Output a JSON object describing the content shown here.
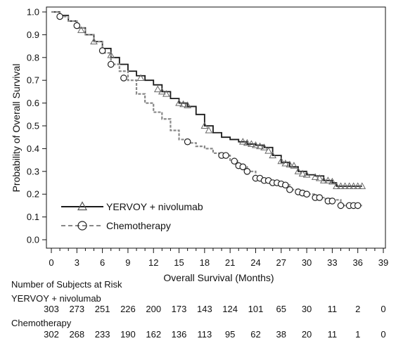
{
  "chart_data": {
    "type": "line",
    "xlabel": "Overall Survival (Months)",
    "ylabel": "Probability of Overall Survival",
    "xlim": [
      0,
      39
    ],
    "ylim": [
      0,
      1.0
    ],
    "x_ticks": [
      0,
      3,
      6,
      9,
      12,
      15,
      18,
      21,
      24,
      27,
      30,
      33,
      36,
      39
    ],
    "y_ticks": [
      0.0,
      0.1,
      0.2,
      0.3,
      0.4,
      0.5,
      0.6,
      0.7,
      0.8,
      0.9,
      1.0
    ],
    "legend_position": "bottom-left",
    "series": [
      {
        "name": "YERVOY + nivolumab",
        "line_style": "solid",
        "marker": "triangle",
        "color": "#1a1a1a",
        "points": [
          [
            0,
            1.0
          ],
          [
            1,
            0.985
          ],
          [
            2,
            0.96
          ],
          [
            3,
            0.93
          ],
          [
            4,
            0.9
          ],
          [
            5,
            0.87
          ],
          [
            6,
            0.84
          ],
          [
            7,
            0.8
          ],
          [
            8,
            0.77
          ],
          [
            9,
            0.74
          ],
          [
            10,
            0.72
          ],
          [
            11,
            0.7
          ],
          [
            12,
            0.68
          ],
          [
            13,
            0.65
          ],
          [
            14,
            0.62
          ],
          [
            15,
            0.6
          ],
          [
            16,
            0.585
          ],
          [
            17,
            0.55
          ],
          [
            18,
            0.5
          ],
          [
            19,
            0.47
          ],
          [
            20,
            0.45
          ],
          [
            21,
            0.44
          ],
          [
            22,
            0.43
          ],
          [
            23,
            0.42
          ],
          [
            24,
            0.415
          ],
          [
            25,
            0.405
          ],
          [
            26,
            0.37
          ],
          [
            27,
            0.34
          ],
          [
            28,
            0.32
          ],
          [
            29,
            0.3
          ],
          [
            30,
            0.285
          ],
          [
            31,
            0.28
          ],
          [
            32,
            0.26
          ],
          [
            33,
            0.25
          ],
          [
            33.5,
            0.235
          ],
          [
            36.5,
            0.235
          ]
        ],
        "censor_marks": [
          [
            3.5,
            0.92
          ],
          [
            5,
            0.87
          ],
          [
            7,
            0.81
          ],
          [
            10.5,
            0.71
          ],
          [
            12.5,
            0.66
          ],
          [
            13,
            0.65
          ],
          [
            13.5,
            0.64
          ],
          [
            15,
            0.6
          ],
          [
            15.5,
            0.595
          ],
          [
            16,
            0.59
          ],
          [
            18,
            0.5
          ],
          [
            18.5,
            0.48
          ],
          [
            22.5,
            0.43
          ],
          [
            23,
            0.425
          ],
          [
            23.5,
            0.42
          ],
          [
            24,
            0.415
          ],
          [
            24.5,
            0.41
          ],
          [
            25,
            0.405
          ],
          [
            25.5,
            0.39
          ],
          [
            26,
            0.37
          ],
          [
            27,
            0.345
          ],
          [
            27.5,
            0.335
          ],
          [
            28,
            0.33
          ],
          [
            28.5,
            0.325
          ],
          [
            29,
            0.3
          ],
          [
            29.5,
            0.29
          ],
          [
            30,
            0.285
          ],
          [
            31,
            0.275
          ],
          [
            31.5,
            0.27
          ],
          [
            32,
            0.26
          ],
          [
            32.5,
            0.26
          ],
          [
            33,
            0.255
          ],
          [
            33.5,
            0.235
          ],
          [
            34,
            0.235
          ],
          [
            34.5,
            0.235
          ],
          [
            35,
            0.235
          ],
          [
            35.5,
            0.235
          ],
          [
            36,
            0.235
          ],
          [
            36.5,
            0.235
          ]
        ]
      },
      {
        "name": "Chemotherapy",
        "line_style": "dashed",
        "marker": "circle",
        "color": "#888888",
        "points": [
          [
            0,
            1.0
          ],
          [
            1,
            0.98
          ],
          [
            2,
            0.96
          ],
          [
            3,
            0.93
          ],
          [
            4,
            0.9
          ],
          [
            5,
            0.87
          ],
          [
            6,
            0.82
          ],
          [
            7,
            0.77
          ],
          [
            8,
            0.74
          ],
          [
            9,
            0.7
          ],
          [
            10,
            0.64
          ],
          [
            11,
            0.6
          ],
          [
            12,
            0.56
          ],
          [
            13,
            0.53
          ],
          [
            14,
            0.48
          ],
          [
            15,
            0.44
          ],
          [
            16,
            0.425
          ],
          [
            17,
            0.41
          ],
          [
            18,
            0.4
          ],
          [
            19,
            0.38
          ],
          [
            20,
            0.37
          ],
          [
            21,
            0.345
          ],
          [
            22,
            0.32
          ],
          [
            23,
            0.3
          ],
          [
            24,
            0.27
          ],
          [
            25,
            0.26
          ],
          [
            26,
            0.25
          ],
          [
            27,
            0.24
          ],
          [
            28,
            0.22
          ],
          [
            29,
            0.21
          ],
          [
            30,
            0.2
          ],
          [
            31,
            0.185
          ],
          [
            32,
            0.18
          ],
          [
            33,
            0.175
          ],
          [
            34,
            0.15
          ],
          [
            36.5,
            0.15
          ]
        ],
        "censor_marks": [
          [
            1,
            0.98
          ],
          [
            3,
            0.94
          ],
          [
            6,
            0.83
          ],
          [
            7,
            0.77
          ],
          [
            8.5,
            0.71
          ],
          [
            16,
            0.43
          ],
          [
            20,
            0.37
          ],
          [
            20.5,
            0.37
          ],
          [
            21.5,
            0.345
          ],
          [
            22,
            0.325
          ],
          [
            22.5,
            0.32
          ],
          [
            23,
            0.3
          ],
          [
            24,
            0.27
          ],
          [
            24.5,
            0.27
          ],
          [
            25,
            0.26
          ],
          [
            25.5,
            0.26
          ],
          [
            26,
            0.25
          ],
          [
            26.5,
            0.25
          ],
          [
            27,
            0.245
          ],
          [
            27.5,
            0.24
          ],
          [
            28,
            0.22
          ],
          [
            29,
            0.21
          ],
          [
            29.5,
            0.205
          ],
          [
            30,
            0.2
          ],
          [
            31,
            0.185
          ],
          [
            31.5,
            0.185
          ],
          [
            32.5,
            0.17
          ],
          [
            33,
            0.17
          ],
          [
            34,
            0.15
          ],
          [
            35,
            0.15
          ],
          [
            35.5,
            0.15
          ],
          [
            36,
            0.15
          ]
        ]
      }
    ],
    "risk_table": {
      "title": "Number of Subjects at Risk",
      "groups": [
        {
          "name": "YERVOY + nivolumab",
          "counts": [
            303,
            273,
            251,
            226,
            200,
            173,
            143,
            124,
            101,
            65,
            30,
            11,
            2,
            0
          ]
        },
        {
          "name": "Chemotherapy",
          "counts": [
            302,
            268,
            233,
            190,
            162,
            136,
            113,
            95,
            62,
            38,
            20,
            11,
            1,
            0
          ]
        }
      ]
    }
  }
}
